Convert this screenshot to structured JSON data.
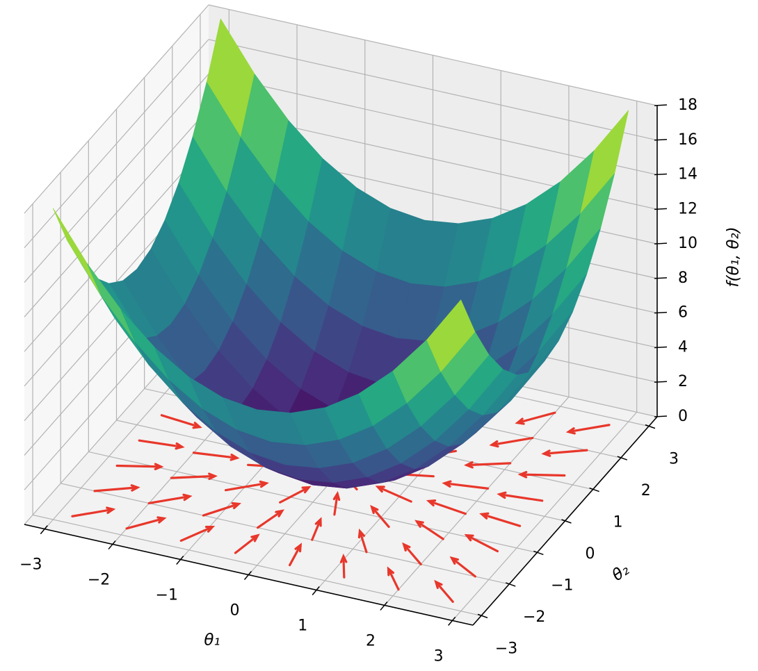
{
  "chart_data": {
    "type": "surface",
    "cmap": "viridis",
    "x": [
      -3,
      -2.5,
      -2,
      -1.5,
      -1,
      -0.5,
      0,
      0.5,
      1,
      1.5,
      2,
      2.5,
      3
    ],
    "y": [
      -3,
      -2.5,
      -2,
      -1.5,
      -1,
      -0.5,
      0,
      0.5,
      1,
      1.5,
      2,
      2.5,
      3
    ],
    "z": [
      [
        18,
        15.25,
        13,
        11.25,
        10,
        9.25,
        9,
        9.25,
        10,
        11.25,
        13,
        15.25,
        18
      ],
      [
        15.25,
        12.5,
        10.25,
        8.5,
        7.25,
        6.5,
        6.25,
        6.5,
        7.25,
        8.5,
        10.25,
        12.5,
        15.25
      ],
      [
        13,
        10.25,
        8,
        6.25,
        5,
        4.25,
        4,
        4.25,
        5,
        6.25,
        8,
        10.25,
        13
      ],
      [
        11.25,
        8.5,
        6.25,
        4.5,
        3.25,
        2.5,
        2.25,
        2.5,
        3.25,
        4.5,
        6.25,
        8.5,
        11.25
      ],
      [
        10,
        7.25,
        5,
        3.25,
        2,
        1.25,
        1,
        1.25,
        2,
        3.25,
        5,
        7.25,
        10
      ],
      [
        9.25,
        6.5,
        4.25,
        2.5,
        1.25,
        0.5,
        0.25,
        0.5,
        1.25,
        2.5,
        4.25,
        6.5,
        9.25
      ],
      [
        9,
        6.25,
        4,
        2.25,
        1,
        0.25,
        0,
        0.25,
        1,
        2.25,
        4,
        6.25,
        9
      ],
      [
        9.25,
        6.5,
        4.25,
        2.5,
        1.25,
        0.5,
        0.25,
        0.5,
        1.25,
        2.5,
        4.25,
        6.5,
        9.25
      ],
      [
        10,
        7.25,
        5,
        3.25,
        2,
        1.25,
        1,
        1.25,
        2,
        3.25,
        5,
        7.25,
        10
      ],
      [
        11.25,
        8.5,
        6.25,
        4.5,
        3.25,
        2.5,
        2.25,
        2.5,
        3.25,
        4.5,
        6.25,
        8.5,
        11.25
      ],
      [
        13,
        10.25,
        8,
        6.25,
        5,
        4.25,
        4,
        4.25,
        5,
        6.25,
        8,
        10.25,
        13
      ],
      [
        15.25,
        12.5,
        10.25,
        8.5,
        7.25,
        6.5,
        6.25,
        6.5,
        7.25,
        8.5,
        10.25,
        12.5,
        15.25
      ],
      [
        18,
        15.25,
        13,
        11.25,
        10,
        9.25,
        9,
        9.25,
        10,
        11.25,
        13,
        15.25,
        18
      ]
    ],
    "quiver": {
      "color": "#e8372b",
      "x": [
        -2.8,
        -2,
        -1.2,
        -0.4,
        0.4,
        1.2,
        2,
        2.8
      ],
      "y": [
        -2.8,
        -2,
        -1.2,
        -0.4,
        0.4,
        1.2,
        2,
        2.8
      ],
      "u": [
        [
          5.6,
          4,
          2.4,
          0.8,
          -0.8,
          -2.4,
          -4,
          -5.6
        ],
        [
          5.6,
          4,
          2.4,
          0.8,
          -0.8,
          -2.4,
          -4,
          -5.6
        ],
        [
          5.6,
          4,
          2.4,
          0.8,
          -0.8,
          -2.4,
          -4,
          -5.6
        ],
        [
          5.6,
          4,
          2.4,
          0.8,
          -0.8,
          -2.4,
          -4,
          -5.6
        ],
        [
          5.6,
          4,
          2.4,
          0.8,
          -0.8,
          -2.4,
          -4,
          -5.6
        ],
        [
          5.6,
          4,
          2.4,
          0.8,
          -0.8,
          -2.4,
          -4,
          -5.6
        ],
        [
          5.6,
          4,
          2.4,
          0.8,
          -0.8,
          -2.4,
          -4,
          -5.6
        ],
        [
          5.6,
          4,
          2.4,
          0.8,
          -0.8,
          -2.4,
          -4,
          -5.6
        ]
      ],
      "v": [
        [
          5.6,
          5.6,
          5.6,
          5.6,
          5.6,
          5.6,
          5.6,
          5.6
        ],
        [
          4,
          4,
          4,
          4,
          4,
          4,
          4,
          4
        ],
        [
          2.4,
          2.4,
          2.4,
          2.4,
          2.4,
          2.4,
          2.4,
          2.4
        ],
        [
          0.8,
          0.8,
          0.8,
          0.8,
          0.8,
          0.8,
          0.8,
          0.8
        ],
        [
          -0.8,
          -0.8,
          -0.8,
          -0.8,
          -0.8,
          -0.8,
          -0.8,
          -0.8
        ],
        [
          -2.4,
          -2.4,
          -2.4,
          -2.4,
          -2.4,
          -2.4,
          -2.4,
          -2.4
        ],
        [
          -4,
          -4,
          -4,
          -4,
          -4,
          -4,
          -4,
          -4
        ],
        [
          -5.6,
          -5.6,
          -5.6,
          -5.6,
          -5.6,
          -5.6,
          -5.6,
          -5.6
        ]
      ]
    },
    "xlim": [
      -3.3,
      3.3
    ],
    "ylim": [
      -3.3,
      3.3
    ],
    "zlim": [
      0,
      18
    ],
    "xticks": [
      {
        "value": -3,
        "label": "−3"
      },
      {
        "value": -2,
        "label": "−2"
      },
      {
        "value": -1,
        "label": "−1"
      },
      0,
      1,
      2,
      3
    ],
    "yticks": [
      {
        "value": -3,
        "label": "−3"
      },
      {
        "value": -2,
        "label": "−2"
      },
      {
        "value": -1,
        "label": "−1"
      },
      0,
      1,
      2,
      3
    ],
    "zticks": [
      0,
      2,
      4,
      6,
      8,
      10,
      12,
      14,
      16,
      18
    ],
    "xlabel": "θ₁",
    "ylabel": "θ₂",
    "zlabel": "f(θ₁, θ₂)",
    "grid": true
  }
}
